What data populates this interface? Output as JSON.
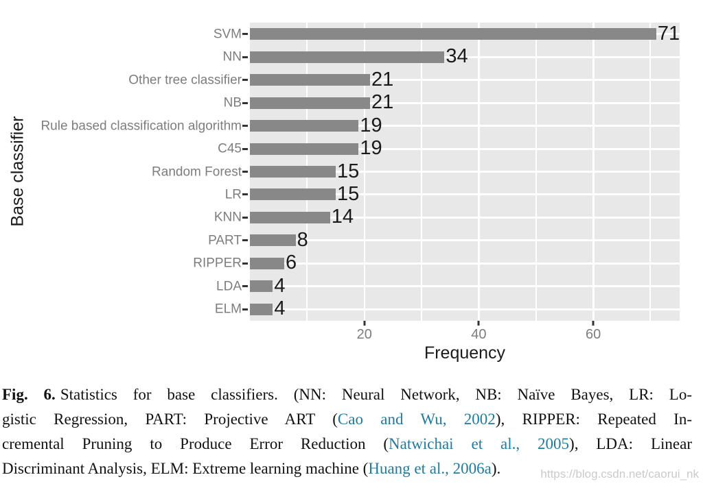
{
  "chart_data": {
    "type": "bar",
    "orientation": "horizontal",
    "title": "",
    "xlabel": "Frequency",
    "ylabel": "Base classifier",
    "categories": [
      "SVM",
      "NN",
      "Other tree classifier",
      "NB",
      "Rule based classification algorithm",
      "C45",
      "Random Forest",
      "LR",
      "KNN",
      "PART",
      "RIPPER",
      "LDA",
      "ELM"
    ],
    "values": [
      71,
      34,
      21,
      21,
      19,
      19,
      15,
      15,
      14,
      8,
      6,
      4,
      4
    ],
    "xlim": [
      0,
      75.1
    ],
    "x_major_ticks": [
      20,
      40,
      60
    ],
    "x_minor_gridlines": [
      10,
      30,
      50,
      70
    ],
    "grid": "on",
    "legend": "none",
    "bar_color": "#888889",
    "panel_bg": "#E8E8E8",
    "grid_color": "#FFFFFF",
    "value_label_color": "#1a1a1a",
    "axis_text_color": "#7d7d7d",
    "tick_mark_color": "#333333"
  },
  "caption": {
    "fig_label": "Fig. 6.",
    "l1": "Statistics for base classifiers. (NN: Neural Network, NB: Naïve Bayes, LR: Lo-",
    "l2a": "gistic Regression, PART: Projective ART (",
    "l2link": "Cao and Wu, 2002",
    "l2b": "), RIPPER: Repeated In-",
    "l3a": "cremental Pruning to Produce Error Reduction (",
    "l3link": "Natwichai et al., 2005",
    "l3b": "), LDA: Linear",
    "l4a": "Discriminant Analysis, ELM: Extreme learning machine (",
    "l4link": "Huang et al., 2006a",
    "l4b": ")."
  },
  "figure": {
    "watermark": "https://blog.csdn.net/caorui_nk"
  }
}
